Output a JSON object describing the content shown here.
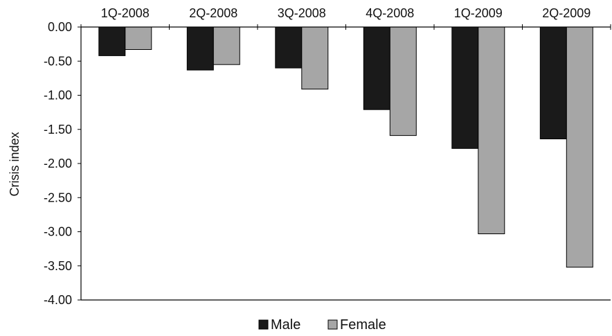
{
  "chart_data": {
    "type": "bar",
    "title": "",
    "xlabel": "",
    "ylabel": "Crisis index",
    "categories": [
      "1Q-2008",
      "2Q-2008",
      "3Q-2008",
      "4Q-2008",
      "1Q-2009",
      "2Q-2009"
    ],
    "series": [
      {
        "name": "Male",
        "color": "#1a1a1a",
        "values": [
          -0.42,
          -0.63,
          -0.6,
          -1.21,
          -1.78,
          -1.64
        ]
      },
      {
        "name": "Female",
        "color": "#a6a6a6",
        "values": [
          -0.33,
          -0.55,
          -0.91,
          -1.59,
          -3.03,
          -3.52
        ]
      }
    ],
    "ylim": [
      -4.0,
      0.0
    ],
    "yticks": [
      "0.00",
      "-0.50",
      "-1.00",
      "-1.50",
      "-2.00",
      "-2.50",
      "-3.00",
      "-3.50",
      "-4.00"
    ],
    "grid": false,
    "legend_position": "bottom-center",
    "category_axis_position": "top"
  }
}
